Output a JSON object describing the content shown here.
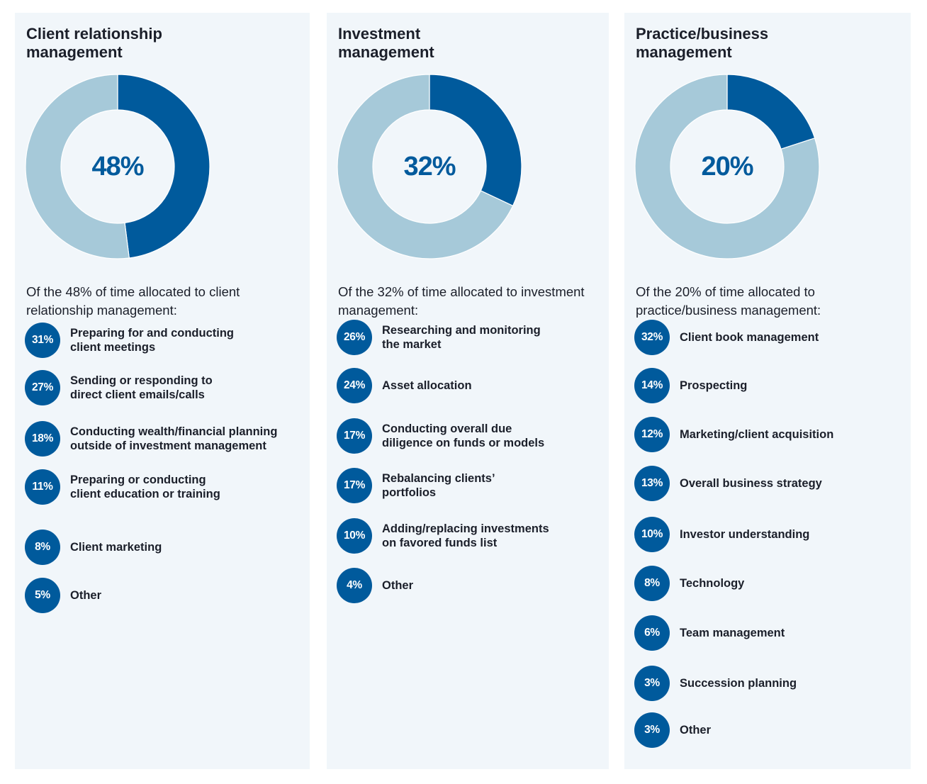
{
  "colors": {
    "accent": "#005a9c",
    "secondary": "#a6c9d9",
    "panel_bg": "#f1f6fa"
  },
  "chart_data": [
    {
      "type": "pie",
      "title": "Client relationship\nmanagement",
      "center_label": "48%",
      "slices": [
        {
          "value": 48,
          "color": "#005a9c"
        },
        {
          "value": 52,
          "color": "#a6c9d9"
        }
      ],
      "intro": "Of the 48% of time allocated to client relationship management:",
      "items": [
        {
          "pct": "31%",
          "label": "Preparing for and conducting\nclient meetings"
        },
        {
          "pct": "27%",
          "label": "Sending or responding to\ndirect client emails/calls"
        },
        {
          "pct": "18%",
          "label": "Conducting wealth/financial planning\noutside of investment management"
        },
        {
          "pct": "11%",
          "label": "Preparing or conducting\nclient education or training"
        },
        {
          "pct": "8%",
          "label": "Client marketing"
        },
        {
          "pct": "5%",
          "label": "Other"
        }
      ]
    },
    {
      "type": "pie",
      "title": "Investment\nmanagement",
      "center_label": "32%",
      "slices": [
        {
          "value": 32,
          "color": "#005a9c"
        },
        {
          "value": 68,
          "color": "#a6c9d9"
        }
      ],
      "intro": "Of the 32% of time allocated to investment management:",
      "items": [
        {
          "pct": "26%",
          "label": "Researching and monitoring\nthe market"
        },
        {
          "pct": "24%",
          "label": "Asset allocation"
        },
        {
          "pct": "17%",
          "label": "Conducting overall due\ndiligence on funds or models"
        },
        {
          "pct": "17%",
          "label": "Rebalancing clients’\nportfolios"
        },
        {
          "pct": "10%",
          "label": "Adding/replacing investments\non favored funds list"
        },
        {
          "pct": "4%",
          "label": "Other"
        }
      ]
    },
    {
      "type": "pie",
      "title": "Practice/business\nmanagement",
      "center_label": "20%",
      "slices": [
        {
          "value": 20,
          "color": "#005a9c"
        },
        {
          "value": 80,
          "color": "#a6c9d9"
        }
      ],
      "intro": "Of the 20% of time allocated to practice/business management:",
      "items": [
        {
          "pct": "32%",
          "label": "Client book management"
        },
        {
          "pct": "14%",
          "label": "Prospecting"
        },
        {
          "pct": "12%",
          "label": "Marketing/client acquisition"
        },
        {
          "pct": "13%",
          "label": "Overall business strategy"
        },
        {
          "pct": "10%",
          "label": "Investor understanding"
        },
        {
          "pct": "8%",
          "label": "Technology"
        },
        {
          "pct": "6%",
          "label": "Team management"
        },
        {
          "pct": "3%",
          "label": "Succession planning"
        },
        {
          "pct": "3%",
          "label": "Other"
        }
      ]
    }
  ]
}
